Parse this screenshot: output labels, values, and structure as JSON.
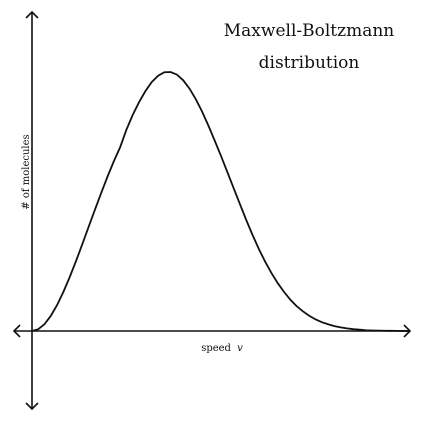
{
  "chart_data": {
    "type": "line",
    "title": [
      "Maxwell-Boltzmann",
      "distribution"
    ],
    "xlabel": "speed",
    "xlabel_variable": "v",
    "ylabel": "# of molecules",
    "grid": false,
    "legend": "none",
    "xlim": [
      0,
      3.0
    ],
    "ylim": [
      -0.35,
      1.12
    ],
    "line_color": "#111111",
    "axis_color": "#111111",
    "series": [
      {
        "x": [
          0.0,
          0.05,
          0.1,
          0.15,
          0.2,
          0.25,
          0.3,
          0.35,
          0.4,
          0.45,
          0.5,
          0.55,
          0.6,
          0.65,
          0.7,
          0.75,
          0.8,
          0.85,
          0.9,
          0.95,
          1.0,
          1.05,
          1.1,
          1.15,
          1.2,
          1.25,
          1.3,
          1.35,
          1.4,
          1.45,
          1.5,
          1.55,
          1.6,
          1.65,
          1.7,
          1.75,
          1.8,
          1.85,
          1.9,
          1.95,
          2.0,
          2.05,
          2.1,
          2.15,
          2.2,
          2.25,
          2.3,
          2.35,
          2.4,
          2.45,
          2.5,
          2.55,
          2.6,
          2.65,
          2.7,
          2.75,
          2.8,
          2.85,
          2.9,
          2.95,
          3.0
        ],
        "y": [
          0.0,
          0.007,
          0.027,
          0.059,
          0.101,
          0.152,
          0.209,
          0.271,
          0.336,
          0.403,
          0.469,
          0.534,
          0.597,
          0.656,
          0.71,
          0.778,
          0.835,
          0.884,
          0.926,
          0.961,
          0.985,
          0.999,
          1.0,
          0.99,
          0.968,
          0.936,
          0.895,
          0.847,
          0.793,
          0.735,
          0.676,
          0.614,
          0.552,
          0.49,
          0.429,
          0.371,
          0.317,
          0.268,
          0.224,
          0.185,
          0.151,
          0.121,
          0.096,
          0.076,
          0.059,
          0.045,
          0.034,
          0.026,
          0.019,
          0.014,
          0.01,
          0.007,
          0.005,
          0.003,
          0.002,
          0.0015,
          0.001,
          0.0007,
          0.0004,
          0.0002,
          0.0
        ]
      }
    ]
  }
}
